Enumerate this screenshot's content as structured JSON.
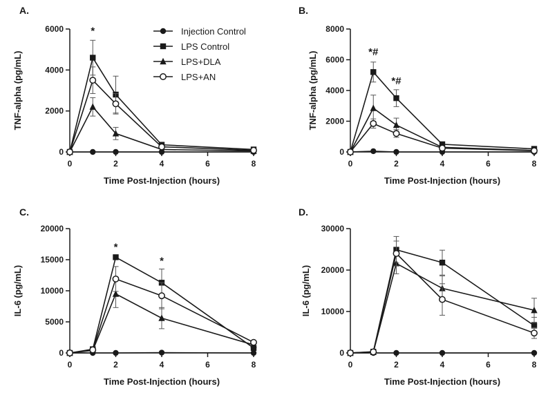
{
  "legend": {
    "position": "top-center",
    "entries": [
      {
        "name": "Injection Control",
        "marker": "circle"
      },
      {
        "name": "LPS Control",
        "marker": "square"
      },
      {
        "name": "LPS+DLA",
        "marker": "triangle"
      },
      {
        "name": "LPS+AN",
        "marker": "open-circle"
      }
    ]
  },
  "chart_data": [
    {
      "panel": "A.",
      "type": "line",
      "xlabel": "Time Post-Injection (hours)",
      "ylabel": "TNF-alpha (pg/mL)",
      "x": [
        0,
        1,
        2,
        4,
        8
      ],
      "xticks": [
        "0",
        "2",
        "4",
        "6",
        "8"
      ],
      "xlim": [
        0,
        8
      ],
      "ylim": [
        0,
        6000
      ],
      "yticks": [
        "0",
        "2000",
        "4000",
        "6000"
      ],
      "series": [
        {
          "name": "Injection Control",
          "marker": "circle",
          "values": [
            0,
            0,
            0,
            0,
            0
          ],
          "err": [
            0,
            0,
            0,
            0,
            0
          ]
        },
        {
          "name": "LPS Control",
          "marker": "square",
          "values": [
            0,
            4600,
            2800,
            350,
            120
          ],
          "err": [
            0,
            850,
            900,
            0,
            0
          ]
        },
        {
          "name": "LPS+DLA",
          "marker": "triangle",
          "values": [
            0,
            2200,
            900,
            120,
            50
          ],
          "err": [
            0,
            450,
            300,
            0,
            0
          ]
        },
        {
          "name": "LPS+AN",
          "marker": "open-circle",
          "values": [
            0,
            3500,
            2350,
            250,
            80
          ],
          "err": [
            0,
            650,
            500,
            0,
            0
          ]
        }
      ],
      "annotations": [
        {
          "x": 1,
          "y": 5750,
          "text": "*"
        }
      ]
    },
    {
      "panel": "B.",
      "type": "line",
      "xlabel": "Time Post-Injection (hours)",
      "ylabel": "TNF-alpha (pg/mL)",
      "x": [
        0,
        1,
        2,
        4,
        8
      ],
      "xticks": [
        "0",
        "2",
        "4",
        "6",
        "8"
      ],
      "xlim": [
        0,
        8
      ],
      "ylim": [
        0,
        8000
      ],
      "yticks": [
        "0",
        "2000",
        "4000",
        "6000",
        "8000"
      ],
      "series": [
        {
          "name": "Injection Control",
          "marker": "circle",
          "values": [
            0,
            50,
            0,
            0,
            0
          ],
          "err": [
            0,
            0,
            0,
            0,
            0
          ]
        },
        {
          "name": "LPS Control",
          "marker": "square",
          "values": [
            0,
            5200,
            3500,
            500,
            200
          ],
          "err": [
            0,
            650,
            550,
            0,
            0
          ]
        },
        {
          "name": "LPS+DLA",
          "marker": "triangle",
          "values": [
            0,
            2850,
            1750,
            300,
            100
          ],
          "err": [
            0,
            850,
            450,
            0,
            0
          ]
        },
        {
          "name": "LPS+AN",
          "marker": "open-circle",
          "values": [
            0,
            1850,
            1200,
            250,
            80
          ],
          "err": [
            0,
            300,
            250,
            0,
            0
          ]
        }
      ],
      "annotations": [
        {
          "x": 1,
          "y": 6300,
          "text": "*#"
        },
        {
          "x": 2,
          "y": 4400,
          "text": "*#"
        }
      ]
    },
    {
      "panel": "C.",
      "type": "line",
      "xlabel": "Time Post-Injection (hours)",
      "ylabel": "IL-6 (pg/mL)",
      "x": [
        0,
        1,
        2,
        4,
        8
      ],
      "xticks": [
        "0",
        "2",
        "4",
        "6",
        "8"
      ],
      "xlim": [
        0,
        8
      ],
      "ylim": [
        0,
        20000
      ],
      "yticks": [
        "0",
        "5000",
        "10000",
        "15000",
        "20000"
      ],
      "series": [
        {
          "name": "Injection Control",
          "marker": "circle",
          "values": [
            0,
            0,
            0,
            50,
            0
          ],
          "err": [
            0,
            0,
            0,
            0,
            0
          ]
        },
        {
          "name": "LPS Control",
          "marker": "square",
          "values": [
            0,
            600,
            15400,
            11300,
            800
          ],
          "err": [
            0,
            0,
            0,
            2200,
            0
          ]
        },
        {
          "name": "LPS+DLA",
          "marker": "triangle",
          "values": [
            0,
            400,
            9500,
            5600,
            1300
          ],
          "err": [
            0,
            0,
            2200,
            1700,
            0
          ]
        },
        {
          "name": "LPS+AN",
          "marker": "open-circle",
          "values": [
            0,
            500,
            11900,
            9200,
            1700
          ],
          "err": [
            0,
            0,
            2000,
            2100,
            0
          ]
        }
      ],
      "annotations": [
        {
          "x": 2,
          "y": 16500,
          "text": "*"
        },
        {
          "x": 4,
          "y": 14300,
          "text": "*"
        }
      ]
    },
    {
      "panel": "D.",
      "type": "line",
      "xlabel": "Time Post-Injection (hours)",
      "ylabel": "IL-6 (pg/mL)",
      "x": [
        0,
        1,
        2,
        4,
        8
      ],
      "xticks": [
        "0",
        "2",
        "4",
        "6",
        "8"
      ],
      "xlim": [
        0,
        8
      ],
      "ylim": [
        0,
        30000
      ],
      "yticks": [
        "0",
        "10000",
        "20000",
        "30000"
      ],
      "series": [
        {
          "name": "Injection Control",
          "marker": "circle",
          "values": [
            0,
            0,
            0,
            0,
            0
          ],
          "err": [
            0,
            0,
            0,
            0,
            0
          ]
        },
        {
          "name": "LPS Control",
          "marker": "square",
          "values": [
            0,
            300,
            24900,
            21800,
            6600
          ],
          "err": [
            0,
            0,
            3200,
            3000,
            2000
          ]
        },
        {
          "name": "LPS+DLA",
          "marker": "triangle",
          "values": [
            0,
            200,
            21600,
            15600,
            10300
          ],
          "err": [
            0,
            0,
            2500,
            3000,
            2900
          ]
        },
        {
          "name": "LPS+AN",
          "marker": "open-circle",
          "values": [
            0,
            250,
            24000,
            12900,
            4800
          ],
          "err": [
            0,
            0,
            3000,
            3800,
            1300
          ]
        }
      ],
      "annotations": []
    }
  ]
}
